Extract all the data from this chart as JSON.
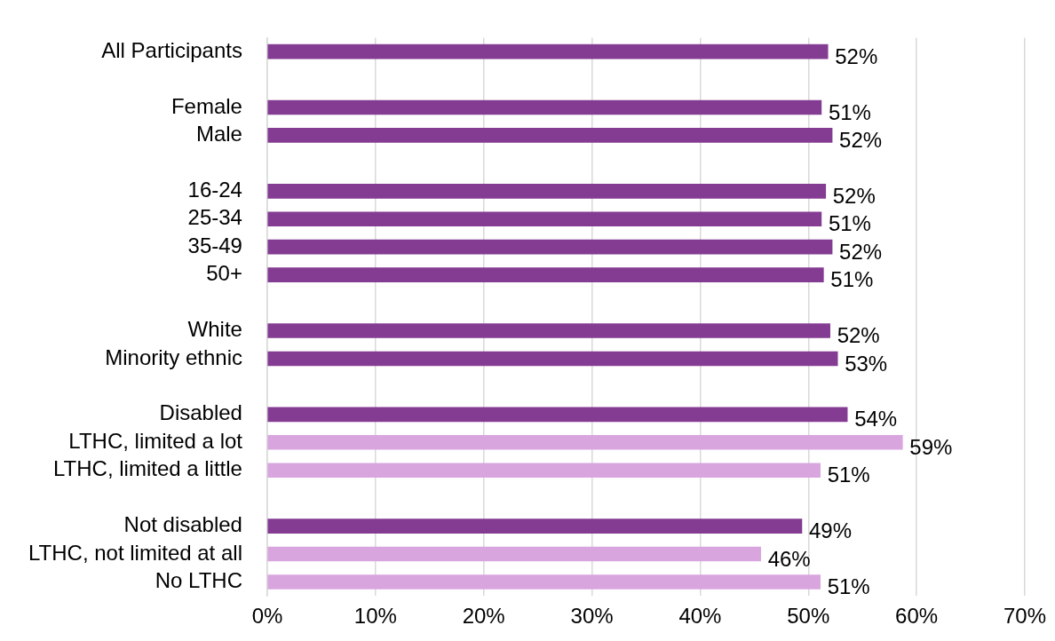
{
  "chart_data": {
    "type": "bar",
    "orientation": "horizontal",
    "categories": [
      "All Participants",
      null,
      "Female",
      "Male",
      null,
      "16-24",
      "25-34",
      "35-49",
      "50+",
      null,
      "White",
      "Minority ethnic",
      null,
      "Disabled",
      "LTHC, limited a lot",
      "LTHC, limited a little",
      null,
      "Not disabled",
      "LTHC, not limited at all",
      "No LTHC"
    ],
    "values": [
      51.8,
      null,
      51.2,
      52.2,
      null,
      51.6,
      51.2,
      52.2,
      51.4,
      null,
      52.0,
      52.7,
      null,
      53.6,
      58.7,
      51.1,
      null,
      49.4,
      45.6,
      51.1
    ],
    "value_labels": [
      "52%",
      null,
      "51%",
      "52%",
      null,
      "52%",
      "51%",
      "52%",
      "51%",
      null,
      "52%",
      "53%",
      null,
      "54%",
      "59%",
      "51%",
      null,
      "49%",
      "46%",
      "51%"
    ],
    "colors": [
      "#843c93",
      null,
      "#843c93",
      "#843c93",
      null,
      "#843c93",
      "#843c93",
      "#843c93",
      "#843c93",
      null,
      "#843c93",
      "#843c93",
      null,
      "#843c93",
      "#d9a5df",
      "#d9a5df",
      null,
      "#843c93",
      "#d9a5df",
      "#d9a5df"
    ],
    "xlim": [
      0,
      70
    ],
    "xticks": [
      {
        "value": 0,
        "label": "0%"
      },
      {
        "value": 10,
        "label": "10%"
      },
      {
        "value": 20,
        "label": "20%"
      },
      {
        "value": 30,
        "label": "30%"
      },
      {
        "value": 40,
        "label": "40%"
      },
      {
        "value": 50,
        "label": "50%"
      },
      {
        "value": 60,
        "label": "60%"
      },
      {
        "value": 70,
        "label": "70%"
      }
    ],
    "grid": "x"
  }
}
